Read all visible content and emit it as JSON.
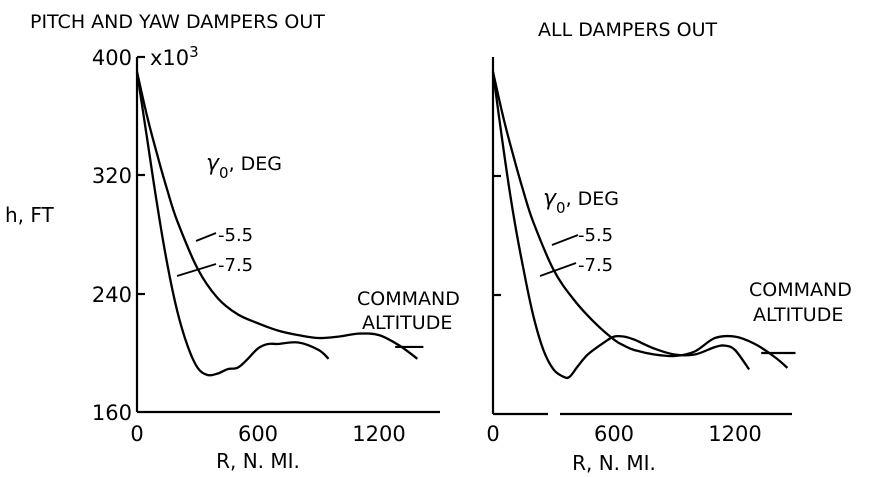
{
  "chart_data": [
    {
      "type": "line",
      "title": "PITCH AND YAW DAMPERS OUT",
      "xlabel": "R, N. MI.",
      "ylabel": "h, FT",
      "y_multiplier": "x10",
      "y_multiplier_exp": "3",
      "xlim": [
        0,
        1500
      ],
      "ylim": [
        160,
        400
      ],
      "x_ticks": [
        0,
        600,
        1200
      ],
      "x_tick_labels": [
        "0",
        "600",
        "1200"
      ],
      "y_ticks": [
        160,
        240,
        320,
        400
      ],
      "y_tick_labels": [
        "160",
        "240",
        "320",
        "400"
      ],
      "parameter_label": "γ0, DEG",
      "parameter_symbol": "γ",
      "parameter_subscript": "0",
      "parameter_unit": ", DEG",
      "series": [
        {
          "name": "-5.5",
          "x": [
            0,
            50,
            100,
            150,
            200,
            300,
            400,
            500,
            600,
            700,
            800,
            900,
            1000,
            1100,
            1200,
            1300,
            1390
          ],
          "y": [
            390,
            360,
            334,
            310,
            289,
            257,
            237,
            226,
            220,
            215,
            212,
            210,
            211,
            213,
            212,
            205,
            196
          ]
        },
        {
          "name": "-7.5",
          "x": [
            0,
            50,
            100,
            150,
            200,
            250,
            300,
            350,
            400,
            450,
            500,
            550,
            600,
            650,
            700,
            800,
            900,
            950
          ],
          "y": [
            390,
            345,
            300,
            260,
            228,
            205,
            190,
            185,
            186,
            189,
            190,
            196,
            203,
            206,
            206,
            207,
            202,
            196
          ]
        }
      ],
      "annotations": [
        "COMMAND",
        "ALTITUDE"
      ],
      "command_altitude_value": 204,
      "command_altitude_range": [
        1280,
        1420
      ]
    },
    {
      "type": "line",
      "title": "ALL DAMPERS OUT",
      "xlabel": "R, N. MI.",
      "xlim": [
        0,
        1500
      ],
      "ylim": [
        160,
        400
      ],
      "x_ticks": [
        0,
        600,
        1200
      ],
      "x_tick_labels": [
        "0",
        "600",
        "1200"
      ],
      "y_ticks": [
        160,
        240,
        320,
        400
      ],
      "parameter_label": "γ0, DEG",
      "parameter_symbol": "γ",
      "parameter_subscript": "0",
      "parameter_unit": ", DEG",
      "series": [
        {
          "name": "-5.5",
          "x": [
            0,
            50,
            100,
            150,
            200,
            300,
            400,
            500,
            600,
            650,
            700,
            800,
            900,
            1000,
            1100,
            1200,
            1300,
            1400,
            1460
          ],
          "y": [
            390,
            360,
            334,
            310,
            289,
            257,
            237,
            222,
            210,
            206,
            203,
            200,
            199,
            202,
            211,
            212,
            207,
            198,
            191
          ]
        },
        {
          "name": "-7.5",
          "x": [
            0,
            50,
            100,
            150,
            200,
            250,
            300,
            350,
            380,
            420,
            470,
            550,
            600,
            650,
            700,
            800,
            900,
            1000,
            1100,
            1150,
            1200,
            1270
          ],
          "y": [
            390,
            340,
            295,
            258,
            226,
            203,
            190,
            185,
            185,
            192,
            200,
            208,
            212,
            212,
            210,
            204,
            200,
            200,
            205,
            206,
            203,
            190
          ]
        }
      ],
      "annotations": [
        "COMMAND",
        "ALTITUDE"
      ],
      "command_altitude_value": 201,
      "command_altitude_range": [
        1330,
        1500
      ]
    }
  ]
}
